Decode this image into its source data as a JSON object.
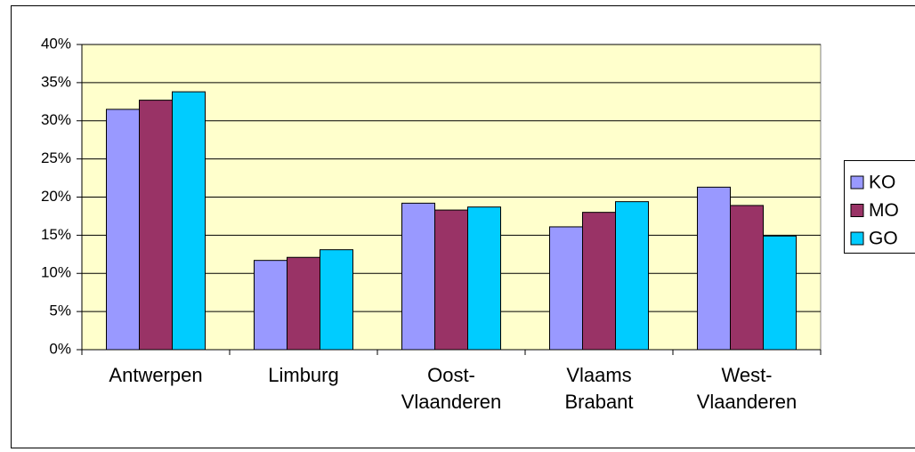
{
  "chart_data": {
    "type": "bar",
    "categories": [
      "Antwerpen",
      "Limburg",
      "Oost-Vlaanderen",
      "Vlaams Brabant",
      "West-Vlaanderen"
    ],
    "series": [
      {
        "name": "KO",
        "color": "#9999ff",
        "values": [
          31.5,
          11.7,
          19.2,
          16.1,
          21.3
        ]
      },
      {
        "name": "MO",
        "color": "#993366",
        "values": [
          32.7,
          12.1,
          18.3,
          18.0,
          18.9
        ]
      },
      {
        "name": "GO",
        "color": "#00ccff",
        "values": [
          33.8,
          13.1,
          18.7,
          19.4,
          14.9
        ]
      }
    ],
    "ylim": [
      0,
      40
    ],
    "yticks": [
      {
        "value": 0,
        "label": "0%"
      },
      {
        "value": 5,
        "label": "5%"
      },
      {
        "value": 10,
        "label": "10%"
      },
      {
        "value": 15,
        "label": "15%"
      },
      {
        "value": 20,
        "label": "20%"
      },
      {
        "value": 25,
        "label": "25%"
      },
      {
        "value": 30,
        "label": "30%"
      },
      {
        "value": 35,
        "label": "35%"
      },
      {
        "value": 40,
        "label": "40%"
      }
    ],
    "grid": true,
    "legend": "right",
    "plot_background": "#ffffcc"
  }
}
